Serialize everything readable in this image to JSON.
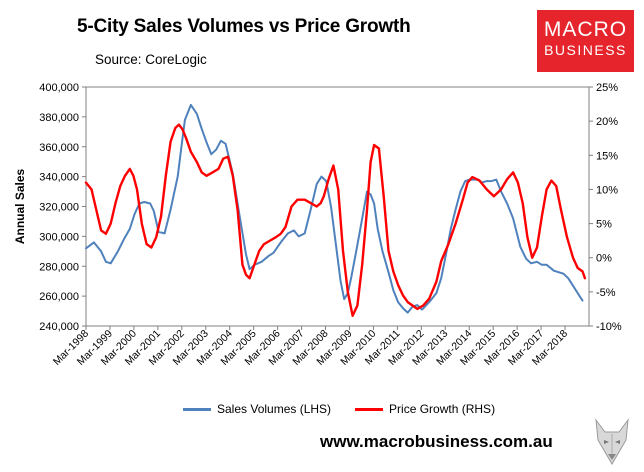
{
  "chart_data": {
    "type": "line",
    "title": "5-City Sales Volumes vs Price Growth",
    "subtitle": "Source: CoreLogic",
    "ylabel": "Annual Sales",
    "y2label": "",
    "ylim": [
      240000,
      400000
    ],
    "y2lim": [
      -10,
      25
    ],
    "yticks": [
      "240,000",
      "260,000",
      "280,000",
      "300,000",
      "320,000",
      "340,000",
      "360,000",
      "380,000",
      "400,000"
    ],
    "y2ticks": [
      "-10%",
      "-5%",
      "0%",
      "5%",
      "10%",
      "15%",
      "20%",
      "25%"
    ],
    "xticks": [
      "Mar-1998",
      "Mar-1999",
      "Mar-2000",
      "Mar-2001",
      "Mar-2002",
      "Mar-2003",
      "Mar-2004",
      "Mar-2005",
      "Mar-2006",
      "Mar-2007",
      "Mar-2008",
      "Mar-2009",
      "Mar-2010",
      "Mar-2011",
      "Mar-2012",
      "Mar-2013",
      "Mar-2014",
      "Mar-2015",
      "Mar-2016",
      "Mar-2017",
      "Mar-2018"
    ],
    "x_start": 1998.17,
    "x_end": 2019.17,
    "series": [
      {
        "name": "Sales Volumes (LHS)",
        "axis": "left",
        "color": "#4f81bd",
        "x": [
          1998.17,
          1998.5,
          1998.8,
          1999.0,
          1999.2,
          1999.5,
          1999.75,
          2000.0,
          2000.2,
          2000.4,
          2000.6,
          2000.85,
          2001.0,
          2001.2,
          2001.45,
          2001.7,
          2002.0,
          2002.17,
          2002.3,
          2002.55,
          2002.8,
          2003.0,
          2003.2,
          2003.4,
          2003.6,
          2003.8,
          2004.0,
          2004.3,
          2004.6,
          2004.85,
          2005.0,
          2005.2,
          2005.5,
          2005.8,
          2006.0,
          2006.3,
          2006.6,
          2006.85,
          2007.05,
          2007.3,
          2007.55,
          2007.8,
          2008.0,
          2008.2,
          2008.4,
          2008.6,
          2008.8,
          2008.95,
          2009.1,
          2009.25,
          2009.45,
          2009.7,
          2009.9,
          2010.05,
          2010.2,
          2010.35,
          2010.55,
          2010.8,
          2011.0,
          2011.2,
          2011.4,
          2011.6,
          2011.8,
          2012.0,
          2012.2,
          2012.5,
          2012.8,
          2013.0,
          2013.2,
          2013.4,
          2013.6,
          2013.8,
          2014.0,
          2014.2,
          2014.4,
          2014.55,
          2014.7,
          2014.9,
          2015.1,
          2015.3,
          2015.5,
          2015.75,
          2016.0,
          2016.3,
          2016.55,
          2016.75,
          2017.0,
          2017.2,
          2017.4,
          2017.55,
          2017.7,
          2017.9,
          2018.1,
          2018.3,
          2018.5,
          2018.7,
          2018.9
        ],
        "values": [
          292000,
          296000,
          290000,
          283000,
          282000,
          290000,
          298000,
          305000,
          315000,
          322000,
          323000,
          322000,
          317000,
          303000,
          302000,
          318000,
          340000,
          362000,
          378000,
          388000,
          382000,
          372000,
          363000,
          355000,
          358000,
          364000,
          362000,
          342000,
          312000,
          288000,
          278000,
          281000,
          283000,
          287000,
          289000,
          296000,
          302000,
          304000,
          300000,
          302000,
          318000,
          335000,
          340000,
          337000,
          320000,
          295000,
          270000,
          258000,
          262000,
          273000,
          290000,
          312000,
          330000,
          328000,
          322000,
          305000,
          290000,
          276000,
          264000,
          256000,
          252000,
          249000,
          253000,
          254000,
          251000,
          256000,
          262000,
          272000,
          288000,
          305000,
          318000,
          330000,
          337000,
          338000,
          338000,
          338000,
          336000,
          337000,
          337000,
          338000,
          330000,
          322000,
          312000,
          293000,
          285000,
          282000,
          283000,
          281000,
          281000,
          279000,
          277000,
          276000,
          275000,
          272000,
          267000,
          262000,
          257000
        ]
      },
      {
        "name": "Price Growth (RHS)",
        "axis": "right",
        "color": "#ff0000",
        "x": [
          1998.17,
          1998.4,
          1998.6,
          1998.8,
          1999.0,
          1999.2,
          1999.4,
          1999.6,
          1999.8,
          2000.0,
          2000.15,
          2000.3,
          2000.5,
          2000.7,
          2000.9,
          2001.1,
          2001.3,
          2001.5,
          2001.7,
          2001.9,
          2002.05,
          2002.2,
          2002.35,
          2002.55,
          2002.8,
          2003.0,
          2003.2,
          2003.45,
          2003.7,
          2003.9,
          2004.1,
          2004.3,
          2004.5,
          2004.7,
          2004.85,
          2005.0,
          2005.2,
          2005.4,
          2005.6,
          2005.85,
          2006.1,
          2006.3,
          2006.5,
          2006.75,
          2007.0,
          2007.3,
          2007.55,
          2007.8,
          2007.97,
          2008.1,
          2008.3,
          2008.5,
          2008.7,
          2008.9,
          2009.0,
          2009.1,
          2009.3,
          2009.5,
          2009.7,
          2009.9,
          2010.05,
          2010.2,
          2010.4,
          2010.6,
          2010.8,
          2011.0,
          2011.2,
          2011.4,
          2011.6,
          2011.8,
          2012.0,
          2012.25,
          2012.5,
          2012.8,
          2013.0,
          2013.3,
          2013.6,
          2013.9,
          2014.1,
          2014.3,
          2014.6,
          2014.9,
          2015.2,
          2015.5,
          2015.75,
          2016.0,
          2016.2,
          2016.4,
          2016.6,
          2016.8,
          2017.0,
          2017.2,
          2017.4,
          2017.6,
          2017.8,
          2018.0,
          2018.25,
          2018.5,
          2018.7,
          2018.9,
          2019.0
        ],
        "values": [
          11,
          10,
          7,
          4,
          3.5,
          5,
          8,
          10.5,
          12,
          13,
          12,
          10,
          5,
          2,
          1.5,
          3,
          6,
          12,
          17,
          19,
          19.5,
          18.8,
          17.5,
          15.5,
          14,
          12.5,
          12,
          12.5,
          13,
          14.5,
          14.8,
          12,
          7,
          -1,
          -2.5,
          -3,
          -1,
          1,
          2,
          2.5,
          3,
          3.5,
          4.5,
          7.5,
          8.5,
          8.5,
          8,
          7.5,
          8,
          9,
          11.5,
          13.5,
          10,
          1,
          -2,
          -5,
          -8.5,
          -7,
          -1,
          7,
          14,
          16.5,
          16,
          9,
          1,
          -2,
          -4,
          -5.5,
          -6.5,
          -7,
          -7.5,
          -7,
          -6,
          -3.5,
          -0.5,
          2,
          5,
          8.5,
          11,
          11.8,
          11.3,
          10,
          9,
          10,
          11.5,
          12.5,
          11,
          8,
          3,
          0,
          1.5,
          6,
          10,
          11.3,
          10.5,
          7,
          3,
          0,
          -1.5,
          -2,
          -3
        ]
      }
    ],
    "legend": [
      "Sales Volumes (LHS)",
      "Price Growth (RHS)"
    ],
    "legend_position": "bottom"
  },
  "branding": {
    "logo_line1": "MACRO",
    "logo_line2": "BUSINESS",
    "website": "www.macrobusiness.com.au",
    "logo_color": "#e5242b"
  }
}
